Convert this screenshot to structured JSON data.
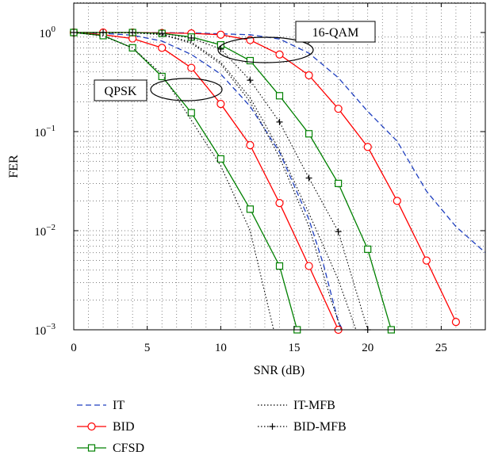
{
  "chart_data": {
    "type": "line",
    "xlabel": "SNR (dB)",
    "ylabel": "FER",
    "xlim": [
      0,
      28
    ],
    "ylim": [
      0.001,
      2
    ],
    "yscale": "log",
    "grid": true,
    "x_ticks": [
      "0",
      "5",
      "10",
      "15",
      "20",
      "25"
    ],
    "y_ticks": [
      {
        "base": "10",
        "exp": "0"
      },
      {
        "base": "10",
        "exp": "−1"
      },
      {
        "base": "10",
        "exp": "−2"
      },
      {
        "base": "10",
        "exp": "−3"
      }
    ],
    "legend_position": "bottom",
    "annotations": [
      "16-QAM",
      "QPSK"
    ],
    "series": [
      {
        "name": "IT",
        "color": "#1f3fbf",
        "style": "dashed",
        "marker": "none",
        "points": [
          [
            0,
            1.0
          ],
          [
            2,
            0.98
          ],
          [
            4,
            0.94
          ],
          [
            6,
            0.82
          ],
          [
            8,
            0.6
          ],
          [
            10,
            0.38
          ],
          [
            12,
            0.18
          ],
          [
            14,
            0.062
          ],
          [
            16,
            0.013
          ],
          [
            17,
            0.0045
          ],
          [
            18,
            0.0012
          ],
          [
            18.3,
            0.001
          ]
        ]
      },
      {
        "name": "IT",
        "color": "#1f3fbf",
        "style": "dashed",
        "marker": "none",
        "points": [
          [
            0,
            1.0
          ],
          [
            4,
            1.0
          ],
          [
            8,
            0.99
          ],
          [
            12,
            0.95
          ],
          [
            14,
            0.86
          ],
          [
            16,
            0.62
          ],
          [
            18,
            0.35
          ],
          [
            20,
            0.16
          ],
          [
            22,
            0.08
          ],
          [
            24,
            0.025
          ],
          [
            26,
            0.011
          ],
          [
            28,
            0.006
          ]
        ]
      },
      {
        "name": "BID",
        "color": "#ff0000",
        "style": "solid",
        "marker": "circle",
        "points": [
          [
            0,
            1.0
          ],
          [
            2,
            0.95
          ],
          [
            4,
            0.87
          ],
          [
            6,
            0.7
          ],
          [
            8,
            0.44
          ],
          [
            10,
            0.19
          ],
          [
            12,
            0.073
          ],
          [
            14,
            0.019
          ],
          [
            16,
            0.0044
          ],
          [
            18,
            0.001
          ]
        ]
      },
      {
        "name": "BID",
        "color": "#ff0000",
        "style": "solid",
        "marker": "circle",
        "points": [
          [
            0,
            1.0
          ],
          [
            2,
            1.0
          ],
          [
            4,
            1.0
          ],
          [
            6,
            0.99
          ],
          [
            8,
            0.98
          ],
          [
            10,
            0.95
          ],
          [
            12,
            0.84
          ],
          [
            14,
            0.6
          ],
          [
            16,
            0.37
          ],
          [
            18,
            0.17
          ],
          [
            20,
            0.07
          ],
          [
            22,
            0.02
          ],
          [
            24,
            0.005
          ],
          [
            26,
            0.0012
          ]
        ]
      },
      {
        "name": "CFSD",
        "color": "#008000",
        "style": "solid",
        "marker": "square",
        "points": [
          [
            0,
            1.0
          ],
          [
            2,
            0.93
          ],
          [
            4,
            0.7
          ],
          [
            6,
            0.36
          ],
          [
            8,
            0.155
          ],
          [
            10,
            0.053
          ],
          [
            12,
            0.0165
          ],
          [
            14,
            0.0044
          ],
          [
            15.2,
            0.001
          ]
        ]
      },
      {
        "name": "CFSD",
        "color": "#008000",
        "style": "solid",
        "marker": "square",
        "points": [
          [
            0,
            1.0
          ],
          [
            4,
            1.0
          ],
          [
            6,
            0.98
          ],
          [
            8,
            0.9
          ],
          [
            10,
            0.75
          ],
          [
            12,
            0.52
          ],
          [
            14,
            0.23
          ],
          [
            16,
            0.095
          ],
          [
            18,
            0.03
          ],
          [
            20,
            0.0065
          ],
          [
            21.6,
            0.001
          ]
        ]
      },
      {
        "name": "IT-MFB",
        "color": "#000000",
        "style": "dotted",
        "marker": "none",
        "points": [
          [
            0,
            1.0
          ],
          [
            2,
            0.92
          ],
          [
            4,
            0.7
          ],
          [
            6,
            0.38
          ],
          [
            8,
            0.13
          ],
          [
            10,
            0.045
          ],
          [
            12,
            0.01
          ],
          [
            13.6,
            0.001
          ]
        ]
      },
      {
        "name": "IT-MFB",
        "color": "#000000",
        "style": "dotted",
        "marker": "none",
        "points": [
          [
            0,
            1.0
          ],
          [
            4,
            0.99
          ],
          [
            6,
            0.95
          ],
          [
            8,
            0.78
          ],
          [
            10,
            0.48
          ],
          [
            12,
            0.2
          ],
          [
            14,
            0.055
          ],
          [
            16,
            0.011
          ],
          [
            17.5,
            0.002
          ],
          [
            18.2,
            0.001
          ]
        ]
      },
      {
        "name": "IT-MFB",
        "color": "#000000",
        "style": "dotted",
        "marker": "none",
        "points": [
          [
            0,
            1.0
          ],
          [
            4,
            0.99
          ],
          [
            6,
            0.96
          ],
          [
            8,
            0.8
          ],
          [
            10,
            0.5
          ],
          [
            12,
            0.22
          ],
          [
            14,
            0.065
          ],
          [
            16,
            0.015
          ],
          [
            18,
            0.0032
          ],
          [
            19.2,
            0.001
          ]
        ]
      },
      {
        "name": "BID-MFB",
        "color": "#000000",
        "style": "dotted",
        "marker": "plus",
        "points": [
          [
            0,
            1.0
          ],
          [
            2,
            1.0
          ],
          [
            4,
            1.0
          ],
          [
            6,
            0.98
          ],
          [
            8,
            0.88
          ],
          [
            10,
            0.68
          ],
          [
            12,
            0.33
          ],
          [
            14,
            0.125
          ],
          [
            16,
            0.034
          ],
          [
            18,
            0.0098
          ],
          [
            20,
            0.001
          ]
        ]
      }
    ]
  },
  "legend": [
    {
      "label": "IT",
      "color": "#1f3fbf",
      "style": "dashed",
      "marker": "none"
    },
    {
      "label": "BID",
      "color": "#ff0000",
      "style": "solid",
      "marker": "circle"
    },
    {
      "label": "CFSD",
      "color": "#008000",
      "style": "solid",
      "marker": "square"
    },
    {
      "label": "IT-MFB",
      "color": "#000000",
      "style": "dotted",
      "marker": "none"
    },
    {
      "label": "BID-MFB",
      "color": "#000000",
      "style": "dotted",
      "marker": "plus"
    }
  ]
}
